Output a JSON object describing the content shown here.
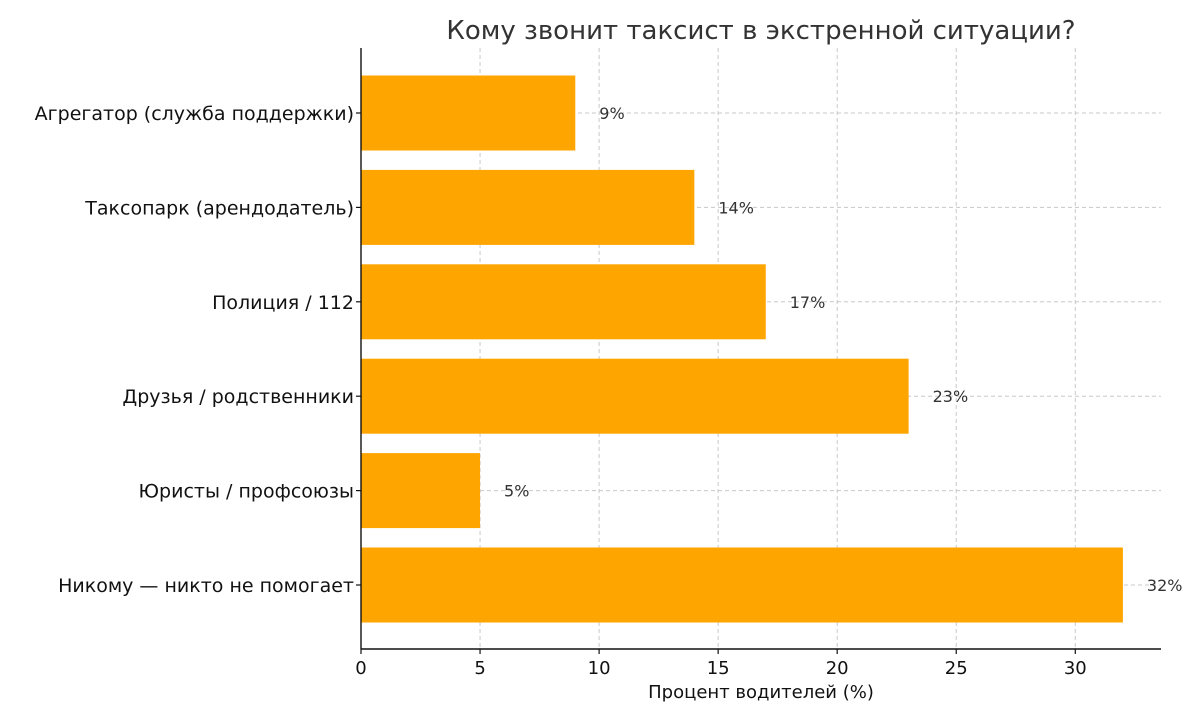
{
  "chart_data": {
    "type": "bar",
    "orientation": "horizontal",
    "title": "Кому звонит таксист в экстренной ситуации?",
    "xlabel": "Процент водителей (%)",
    "ylabel": "",
    "categories": [
      "Агрегатор (служба поддержки)",
      "Таксопарк (арендодатель)",
      "Полиция / 112",
      "Друзья / родственники",
      "Юристы / профсоюзы",
      "Никому — никто не помогает"
    ],
    "values": [
      9,
      14,
      17,
      23,
      5,
      32
    ],
    "value_labels": [
      "9%",
      "14%",
      "17%",
      "23%",
      "5%",
      "32%"
    ],
    "xlim": [
      0,
      33.6
    ],
    "xticks": [
      0,
      5,
      10,
      15,
      20,
      25,
      30
    ],
    "xtick_labels": [
      "0",
      "5",
      "10",
      "15",
      "20",
      "25",
      "30"
    ],
    "grid": true,
    "legend": false,
    "bar_color": "#ffa500"
  }
}
